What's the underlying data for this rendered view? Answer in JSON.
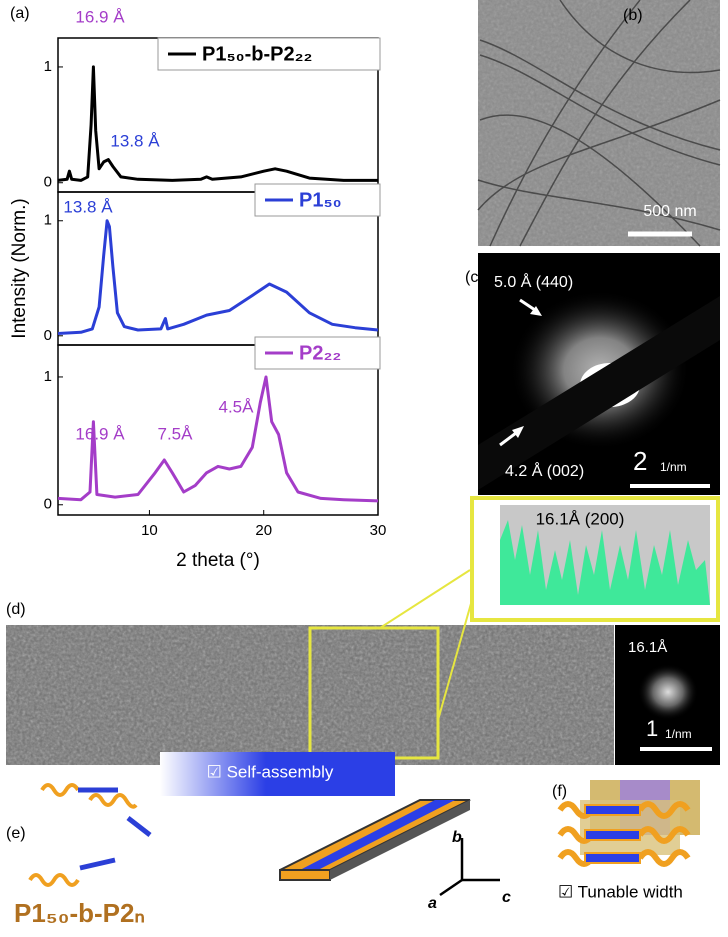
{
  "chart_data": [
    {
      "type": "line",
      "x": [
        2,
        2.8,
        3,
        3.2,
        4,
        4.6,
        4.9,
        5.1,
        5.3,
        5.6,
        6,
        6.4,
        6.8,
        7.5,
        9,
        12,
        14.5,
        15,
        15.5,
        18,
        20,
        21,
        22,
        24,
        27,
        30
      ],
      "series": [
        {
          "name": "P1₅₀-b-P2₂₂",
          "color": "#000000",
          "values": [
            0.02,
            0.03,
            0.1,
            0.03,
            0.02,
            0.05,
            0.5,
            1.0,
            0.45,
            0.12,
            0.18,
            0.2,
            0.14,
            0.05,
            0.03,
            0.02,
            0.03,
            0.05,
            0.03,
            0.05,
            0.1,
            0.12,
            0.1,
            0.04,
            0.02,
            0.02
          ]
        }
      ],
      "xlim": [
        2,
        30
      ],
      "ylim": [
        -0.08,
        1.25
      ],
      "yticks": [
        0,
        1
      ],
      "legend": "upper right",
      "annotations": [
        {
          "text": "16.9 Å",
          "color": "#a43dc8"
        },
        {
          "text": "13.8 Å",
          "color": "#2b3fd6"
        }
      ]
    },
    {
      "type": "line",
      "x": [
        2,
        4,
        5,
        5.6,
        6,
        6.3,
        6.5,
        6.8,
        7.2,
        7.8,
        9,
        11,
        11.4,
        11.6,
        13,
        15,
        17,
        19,
        20.5,
        22,
        24,
        26,
        28,
        30
      ],
      "series": [
        {
          "name": "P1₅₀",
          "color": "#2b3fd6",
          "values": [
            0.02,
            0.03,
            0.06,
            0.25,
            0.7,
            1.0,
            0.95,
            0.6,
            0.2,
            0.08,
            0.05,
            0.06,
            0.15,
            0.06,
            0.1,
            0.18,
            0.22,
            0.35,
            0.45,
            0.38,
            0.2,
            0.1,
            0.07,
            0.05
          ]
        }
      ],
      "xlim": [
        2,
        30
      ],
      "ylim": [
        -0.08,
        1.25
      ],
      "yticks": [
        0,
        1
      ],
      "legend": "upper right",
      "y_label": "Intensity (Norm.)",
      "annotations": [
        {
          "text": "13.8 Å",
          "color": "#2b3fd6"
        }
      ]
    },
    {
      "type": "line",
      "x": [
        2,
        4,
        4.8,
        5.1,
        5.4,
        7,
        9,
        10.5,
        11.3,
        12,
        13,
        14,
        15,
        16,
        17,
        18,
        19,
        19.7,
        20.2,
        20.7,
        21.3,
        22,
        23,
        25,
        27,
        30
      ],
      "series": [
        {
          "name": "P2₂₂",
          "color": "#a43dc8",
          "values": [
            0.05,
            0.04,
            0.1,
            0.65,
            0.08,
            0.06,
            0.08,
            0.25,
            0.35,
            0.25,
            0.1,
            0.15,
            0.25,
            0.3,
            0.28,
            0.3,
            0.45,
            0.8,
            1.0,
            0.65,
            0.55,
            0.25,
            0.1,
            0.05,
            0.04,
            0.03
          ]
        }
      ],
      "xlim": [
        2,
        30
      ],
      "ylim": [
        -0.08,
        1.25
      ],
      "yticks": [
        0,
        1
      ],
      "xticks": [
        10,
        20,
        30
      ],
      "legend": "upper right",
      "x_label": "2 theta (°)",
      "annotations": [
        {
          "text": "16.9 Å",
          "color": "#a43dc8"
        },
        {
          "text": "7.5Å",
          "color": "#a43dc8"
        },
        {
          "text": "4.5Å",
          "color": "#a43dc8"
        }
      ]
    }
  ],
  "figure": {
    "panels": [
      "(a)",
      "(b)",
      "(c)",
      "(d)",
      "(e)",
      "(f)"
    ],
    "b_scale": "500 nm",
    "c_labels": [
      "5.0 Å (440)",
      "4.2 Å (002)"
    ],
    "c_scale_num": "2",
    "c_scale_unit": "1/nm",
    "d_profile_title": "16.1Å (200)",
    "d_fft_label": "16.1Å",
    "d_scale_num": "1",
    "d_scale_unit": "1/nm",
    "e_label": "☑ Self-assembly",
    "e_polymer": "P1₅₀-b-P2ₙ",
    "axes": [
      "a",
      "b",
      "c"
    ],
    "f_label": "☑ Tunable width"
  }
}
